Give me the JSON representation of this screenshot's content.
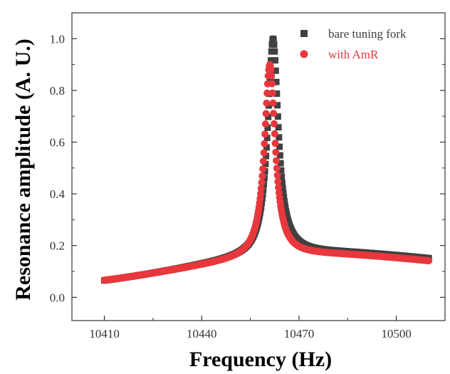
{
  "chart_data": {
    "type": "scatter",
    "xlabel": "Frequency (Hz)",
    "ylabel": "Resonance amplitude (A. U.)",
    "xlim": [
      10400,
      10515
    ],
    "ylim": [
      -0.09,
      1.1
    ],
    "xticks": [
      10410,
      10440,
      10470,
      10500
    ],
    "xtick_labels": [
      "10410",
      "10440",
      "10470",
      "10500"
    ],
    "yticks": [
      0.0,
      0.2,
      0.4,
      0.6,
      0.8,
      1.0
    ],
    "ytick_labels": [
      "0.0",
      "0.2",
      "0.4",
      "0.6",
      "0.8",
      "1.0"
    ],
    "grid": false,
    "legend_position": "top-right",
    "series": [
      {
        "name": "bare tuning fork",
        "marker": "square",
        "color": "#404040",
        "peak_x": 10462,
        "peak_y": 1.0,
        "x_start": 10410,
        "x_end": 10510,
        "y_start": 0.045,
        "y_end": 0.1
      },
      {
        "name": "with AmR",
        "marker": "circle",
        "color": "#e8383d",
        "peak_x": 10461,
        "peak_y": 0.9,
        "x_start": 10410,
        "x_end": 10510,
        "y_start": 0.045,
        "y_end": 0.095
      }
    ]
  }
}
